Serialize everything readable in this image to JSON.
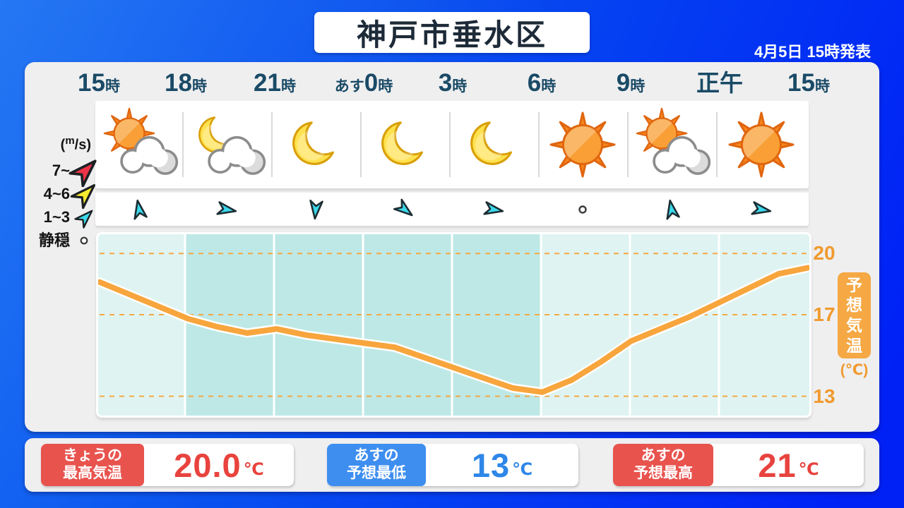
{
  "header": {
    "title": "神戸市垂水区",
    "announced": "4月5日 15時発表"
  },
  "timeline": [
    {
      "prefix": "",
      "main": "15",
      "suffix": "時"
    },
    {
      "prefix": "",
      "main": "18",
      "suffix": "時"
    },
    {
      "prefix": "",
      "main": "21",
      "suffix": "時"
    },
    {
      "prefix": "あす",
      "main": "0",
      "suffix": "時"
    },
    {
      "prefix": "",
      "main": "3",
      "suffix": "時"
    },
    {
      "prefix": "",
      "main": "6",
      "suffix": "時"
    },
    {
      "prefix": "",
      "main": "9",
      "suffix": "時"
    },
    {
      "prefix": "",
      "main": "正午",
      "suffix": ""
    },
    {
      "prefix": "",
      "main": "15",
      "suffix": "時"
    }
  ],
  "weather_icons": [
    "sun-cloud",
    "moon-cloud",
    "moon",
    "moon",
    "moon",
    "sun",
    "sun-cloud",
    "sun"
  ],
  "wind": [
    {
      "kind": "arrow",
      "deg": -100
    },
    {
      "kind": "arrow",
      "deg": 10
    },
    {
      "kind": "arrow",
      "deg": 95
    },
    {
      "kind": "arrow",
      "deg": 38
    },
    {
      "kind": "arrow",
      "deg": 10
    },
    {
      "kind": "calm"
    },
    {
      "kind": "arrow",
      "deg": -100
    },
    {
      "kind": "arrow",
      "deg": 10
    }
  ],
  "wind_legend": {
    "unit_prefix": "(",
    "unit_sup": "m",
    "unit_suffix": "/s)",
    "rows": [
      {
        "label": "7~",
        "color": "#ED3347",
        "scale": 1.5
      },
      {
        "label": "4~6",
        "color": "#F7EC2E",
        "scale": 1.35
      },
      {
        "label": "1~3",
        "color": "#3BD9EC",
        "scale": 1.0
      }
    ],
    "calm_label": "静穏"
  },
  "chart_data": {
    "type": "line",
    "title": "予想気温",
    "unit_label": "(℃)",
    "x_tick_labels": [
      "15時",
      "18時",
      "21時",
      "あす0時",
      "3時",
      "6時",
      "9時",
      "正午",
      "15時"
    ],
    "y_ticks": [
      20,
      17,
      13
    ],
    "y_range": [
      12.0,
      21.0
    ],
    "grid": "dashed-horizontal",
    "night_sections": [
      1,
      2,
      3,
      4
    ],
    "series": [
      {
        "name": "予想気温",
        "start_hour": 15,
        "step_hours": 1,
        "values": [
          18.6,
          18.0,
          17.4,
          16.8,
          16.4,
          16.1,
          16.3,
          16.0,
          15.8,
          15.6,
          15.4,
          14.9,
          14.4,
          13.9,
          13.4,
          13.2,
          13.8,
          14.7,
          15.7,
          16.3,
          16.9,
          17.6,
          18.3,
          19.0,
          19.3
        ]
      }
    ]
  },
  "summary": [
    {
      "title_lines": [
        "きょうの",
        "最高気温"
      ],
      "value": "20.0",
      "unit": "℃",
      "accent": "#E8534E",
      "value_color": "#E8433E"
    },
    {
      "title_lines": [
        "あすの",
        "予想最低"
      ],
      "value": "13",
      "unit": "℃",
      "accent": "#3E8EF0",
      "value_color": "#2E86E8"
    },
    {
      "title_lines": [
        "あすの",
        "予想最高"
      ],
      "value": "21",
      "unit": "℃",
      "accent": "#E8534E",
      "value_color": "#E8433E"
    }
  ],
  "colors": {
    "bg_left": "#0d68f2",
    "bg_right": "#0021f6",
    "panel": "#efeff0",
    "navy": "#1a4a66",
    "chart_day": "#DFF4F2",
    "chart_night": "#BEE8E6",
    "curve": "#F7A53C",
    "gridline": "#F5A843",
    "axis_orange": "#F09A2E",
    "temp_box": "#F5A843",
    "wind_cyan": "#3BD9EC",
    "sun_orange": "#F8871E",
    "moon_yellow": "#FFE14E"
  }
}
